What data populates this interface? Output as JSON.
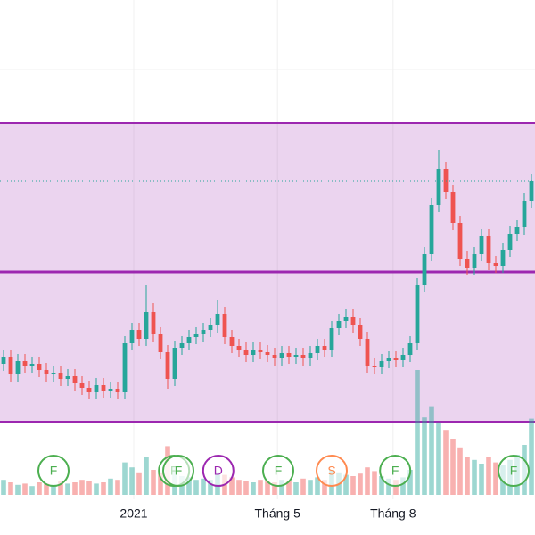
{
  "chart_data": {
    "type": "candlestick",
    "xlim": [
      -0.5,
      74.5
    ],
    "ylim": [
      10,
      40
    ],
    "xticks": [
      {
        "value": 18.25,
        "label": "2021"
      },
      {
        "value": 38.4,
        "label": "Tháng 5"
      },
      {
        "value": 54.6,
        "label": "Tháng 8"
      }
    ],
    "grid": true,
    "up_color": "#26a69a",
    "down_color": "#ef5350",
    "band": [
      16.35,
      33.1
    ],
    "band_color": "#9c27b0",
    "level": 24.75,
    "series": [
      {
        "open": [
          19.6,
          20,
          19,
          19.75,
          19.5,
          19.6,
          19.25,
          19,
          19.1,
          18.75,
          18.9,
          18.5,
          18.25,
          18,
          18.4,
          18.1,
          18.2,
          18,
          20.75,
          21.5,
          21,
          22.5,
          21.25,
          20.25,
          18.75,
          20.5,
          20.75,
          21.1,
          21.25,
          21.5,
          21.75,
          22.4,
          21.1,
          20.6,
          20.4,
          20.1,
          20.4,
          20.25,
          20.1,
          19.9,
          20.2,
          20,
          20.1,
          19.9,
          20.2,
          20.6,
          20.4,
          21.6,
          22,
          22.25,
          21.75,
          21,
          19.5,
          19.4,
          19.75,
          19.9,
          19.8,
          20.1,
          20.75,
          24,
          25.75,
          28.5,
          30.5,
          29.25,
          27.5,
          25.5,
          25,
          25.75,
          26.75,
          25.25,
          25.1,
          26,
          26.9,
          27.25,
          28.75
        ],
        "high": [
          20.4,
          20.4,
          20.15,
          20.15,
          20,
          20,
          19.65,
          19.5,
          19.5,
          19.3,
          19.3,
          18.9,
          18.65,
          18.8,
          18.8,
          18.6,
          18.6,
          21.15,
          21.9,
          21.9,
          24,
          23,
          21.65,
          20.65,
          20.9,
          21.15,
          21.5,
          21.65,
          21.9,
          22.15,
          23.2,
          22.8,
          21.5,
          21,
          20.8,
          20.8,
          20.8,
          20.65,
          20.5,
          20.6,
          20.6,
          20.5,
          20.5,
          20.6,
          21,
          21,
          22,
          22.4,
          22.65,
          22.65,
          22.15,
          21.4,
          19.9,
          20.15,
          20.3,
          20.3,
          20.5,
          21.15,
          24.4,
          26.15,
          28.9,
          31.6,
          30.9,
          29.65,
          27.9,
          25.9,
          26.15,
          27.15,
          27.15,
          25.65,
          26.4,
          27.3,
          27.65,
          29.15,
          30.25
        ],
        "low": [
          19.2,
          18.6,
          18.6,
          19.1,
          19.1,
          18.85,
          18.6,
          18.6,
          18.35,
          18.35,
          18.1,
          17.85,
          17.6,
          17.6,
          17.7,
          17.7,
          17.6,
          17.6,
          20.35,
          20.6,
          20.6,
          20.85,
          19.85,
          18.2,
          18.35,
          20.1,
          20.35,
          20.7,
          20.85,
          21.1,
          21.35,
          20.7,
          20.2,
          20,
          19.7,
          19.7,
          19.85,
          19.7,
          19.5,
          19.5,
          19.6,
          19.6,
          19.5,
          19.5,
          19.8,
          20,
          20,
          21.2,
          21.6,
          21.35,
          20.6,
          19.1,
          19,
          19,
          19.35,
          19.4,
          19.4,
          19.7,
          20.35,
          23.6,
          25.35,
          28.1,
          28.85,
          27.1,
          25.1,
          24.6,
          24.6,
          25.35,
          24.85,
          24.7,
          24.7,
          25.6,
          26.5,
          26.85,
          28.35
        ],
        "close": [
          20,
          19,
          19.75,
          19.5,
          19.6,
          19.25,
          19,
          19.1,
          18.75,
          18.9,
          18.5,
          18.25,
          18,
          18.4,
          18.1,
          18.2,
          18,
          20.75,
          21.5,
          21,
          22.5,
          21.25,
          20.25,
          18.75,
          20.5,
          20.75,
          21.1,
          21.25,
          21.5,
          21.75,
          22.4,
          21.1,
          20.6,
          20.4,
          20.1,
          20.4,
          20.25,
          20.1,
          19.9,
          20.2,
          20,
          20.1,
          19.9,
          20.2,
          20.6,
          20.4,
          21.6,
          22,
          22.25,
          21.75,
          21,
          19.5,
          19.4,
          19.75,
          19.9,
          19.8,
          20.1,
          20.75,
          24,
          25.75,
          28.5,
          30.5,
          29.25,
          27.5,
          25.5,
          25,
          25.75,
          26.75,
          25.25,
          25.1,
          26,
          26.9,
          27.25,
          28.75,
          29.85
        ],
        "volume": [
          12,
          10,
          8,
          9,
          7,
          10,
          9,
          8,
          11,
          9,
          10,
          12,
          11,
          9,
          10,
          13,
          12,
          26,
          22,
          18,
          30,
          20,
          18,
          39,
          22,
          15,
          14,
          12,
          13,
          12,
          18,
          16,
          14,
          12,
          11,
          10,
          12,
          11,
          10,
          12,
          11,
          10,
          13,
          12,
          14,
          12,
          20,
          18,
          16,
          15,
          17,
          22,
          19,
          15,
          13,
          12,
          14,
          20,
          100,
          62,
          71,
          58,
          52,
          45,
          38,
          30,
          28,
          25,
          30,
          26,
          24,
          28,
          32,
          40,
          61
        ]
      }
    ],
    "volume_lim": [
      0,
      100
    ],
    "events": [
      {
        "label": "F",
        "at": 7,
        "color": "#4caf50"
      },
      {
        "label": "F",
        "at": 23.9,
        "color": "#4caf50"
      },
      {
        "label": "F",
        "at": 24.5,
        "color": "#4caf50"
      },
      {
        "label": "D",
        "at": 30.1,
        "color": "#9c27b0"
      },
      {
        "label": "F",
        "at": 38.5,
        "color": "#4caf50"
      },
      {
        "label": "S",
        "at": 46,
        "color": "#ff8a50"
      },
      {
        "label": "F",
        "at": 54.9,
        "color": "#4caf50"
      },
      {
        "label": "F",
        "at": 71.5,
        "color": "#4caf50"
      }
    ]
  }
}
